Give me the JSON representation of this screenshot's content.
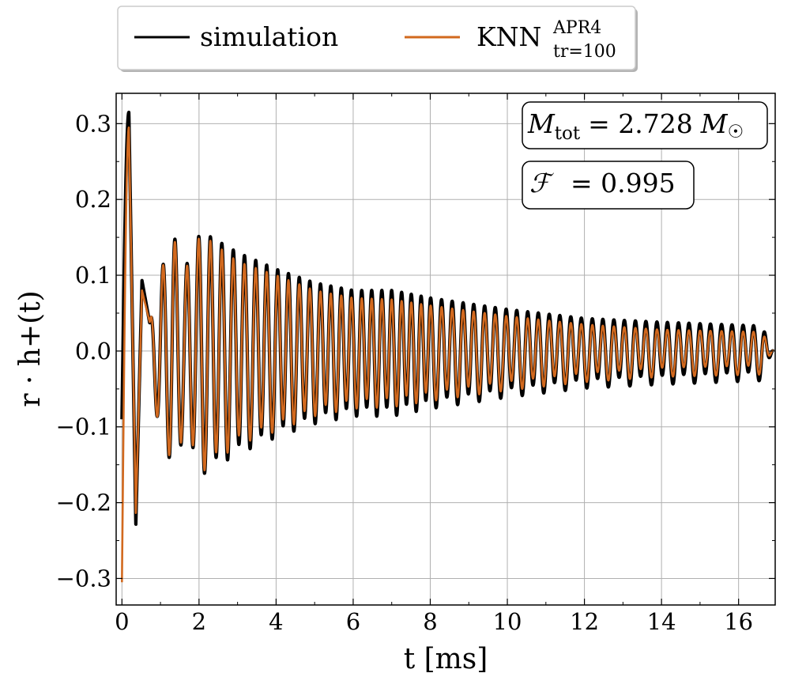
{
  "chart_data": {
    "type": "line",
    "title": "",
    "xlabel": "t [ms]",
    "ylabel": "r · h+(t)",
    "xlim": [
      -0.15,
      16.95
    ],
    "ylim": [
      -0.335,
      0.34
    ],
    "grid": true,
    "legend_position": "top-center, outside plot",
    "xticks": [
      0,
      2,
      4,
      6,
      8,
      10,
      12,
      14,
      16
    ],
    "xtick_labels": [
      "0",
      "2",
      "4",
      "6",
      "8",
      "10",
      "12",
      "14",
      "16"
    ],
    "yticks": [
      -0.3,
      -0.2,
      -0.1,
      0.0,
      0.1,
      0.2,
      0.3
    ],
    "ytick_labels": [
      "−0.3",
      "−0.2",
      "−0.1",
      "0.0",
      "0.1",
      "0.2",
      "0.3"
    ],
    "annotations": {
      "mass": {
        "label": "M",
        "label_sub": "tot",
        "value": "= 2.728",
        "unit": "M",
        "unit_symbol": "☉"
      },
      "faithfulness": {
        "label": "ℱ",
        "value": "= 0.995"
      }
    },
    "series": [
      {
        "name": "simulation",
        "color": "#000000",
        "approx_peaks": {
          "t": [
            0.0,
            0.18,
            0.36,
            0.52,
            0.72,
            1.0,
            1.3,
            1.6,
            2.05,
            3.0,
            4.0,
            5.0,
            6.0,
            7.0,
            8.0,
            10.0,
            12.0,
            14.0,
            16.6,
            16.9
          ],
          "value": [
            -0.09,
            0.315,
            -0.23,
            0.093,
            0.037,
            0.1,
            0.162,
            0.105,
            0.158,
            0.13,
            0.108,
            0.09,
            0.08,
            0.08,
            0.07,
            0.055,
            0.043,
            0.038,
            0.033,
            0.0
          ]
        }
      },
      {
        "name": "KNN",
        "name_sup": "APR4",
        "name_sub": "tr=100",
        "color": "#d2691e",
        "approx_peaks": {
          "t": [
            0.0,
            0.18,
            0.36,
            0.52,
            0.72,
            1.0,
            1.3,
            1.6,
            2.05,
            3.0,
            4.0,
            5.0,
            6.0,
            7.0,
            8.0,
            10.0,
            12.0,
            14.0,
            16.6,
            16.9
          ],
          "value": [
            -0.305,
            0.295,
            -0.215,
            0.08,
            0.038,
            0.1,
            0.158,
            0.102,
            0.155,
            0.118,
            0.1,
            0.08,
            0.07,
            0.068,
            0.06,
            0.046,
            0.035,
            0.028,
            0.025,
            -0.01
          ]
        }
      }
    ]
  }
}
